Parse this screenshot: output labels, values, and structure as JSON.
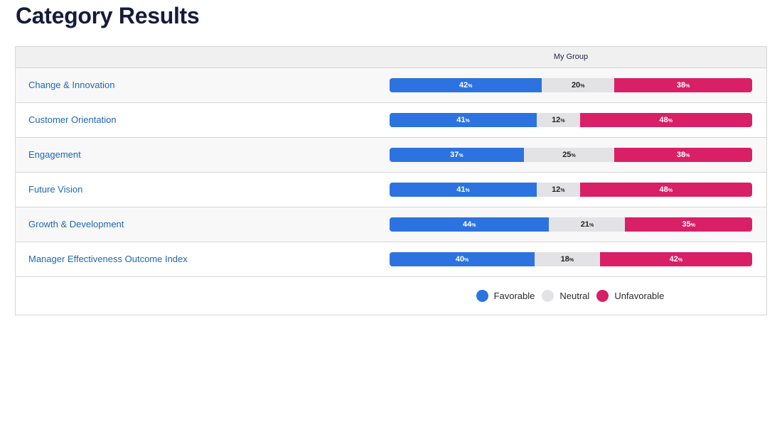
{
  "page": {
    "title": "Category Results"
  },
  "table": {
    "group_label": "My Group"
  },
  "colors": {
    "favorable": "#2c73e0",
    "neutral": "#e3e3e5",
    "unfavorable": "#d91f66"
  },
  "chart_data": {
    "type": "bar",
    "stacked": true,
    "orientation": "horizontal",
    "normalized_percent": true,
    "group": "My Group",
    "categories": [
      "Change & Innovation",
      "Customer Orientation",
      "Engagement",
      "Future Vision",
      "Growth & Development",
      "Manager Effectiveness Outcome Index"
    ],
    "series": [
      {
        "name": "Favorable",
        "values": [
          42,
          41,
          37,
          41,
          44,
          40
        ]
      },
      {
        "name": "Neutral",
        "values": [
          20,
          12,
          25,
          12,
          21,
          18
        ]
      },
      {
        "name": "Unfavorable",
        "values": [
          38,
          48,
          38,
          48,
          35,
          42
        ]
      }
    ],
    "value_unit": "%",
    "legend_position": "bottom"
  }
}
